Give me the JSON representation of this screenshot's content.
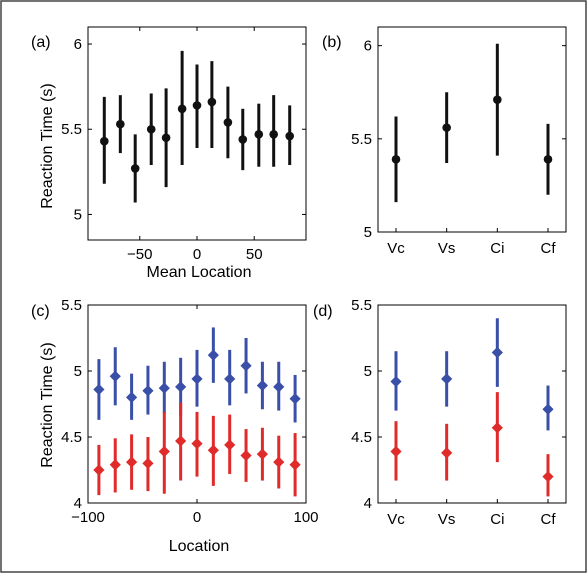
{
  "colors": {
    "black": "#111111",
    "blue": "#3a4fa8",
    "red": "#e02b2b",
    "frame": "#444444"
  },
  "chart_data": [
    {
      "panel": "(a)",
      "type": "scatter",
      "error_bars": true,
      "xlabel": "Mean Location",
      "ylabel": "Reaction Time (s)",
      "xlim": [
        -90,
        90
      ],
      "ylim": [
        4.85,
        6.1
      ],
      "xticks": [
        -50,
        0,
        50
      ],
      "yticks": [
        5,
        5.5,
        6
      ],
      "series": [
        {
          "color": "black",
          "x": [
            -81,
            -67,
            -54,
            -40,
            -27,
            -13,
            0,
            13,
            27,
            40,
            54,
            67,
            81
          ],
          "y": [
            5.43,
            5.53,
            5.27,
            5.5,
            5.45,
            5.62,
            5.64,
            5.66,
            5.54,
            5.44,
            5.47,
            5.47,
            5.46
          ],
          "err_low": [
            5.18,
            5.36,
            5.07,
            5.29,
            5.16,
            5.29,
            5.39,
            5.39,
            5.33,
            5.26,
            5.28,
            5.28,
            5.29
          ],
          "err_high": [
            5.69,
            5.7,
            5.47,
            5.71,
            5.74,
            5.96,
            5.88,
            5.9,
            5.75,
            5.62,
            5.65,
            5.7,
            5.64
          ]
        }
      ]
    },
    {
      "panel": "(b)",
      "type": "scatter",
      "error_bars": true,
      "categories": [
        "Vc",
        "Vs",
        "Ci",
        "Cf"
      ],
      "ylim": [
        5,
        6.1
      ],
      "yticks": [
        5,
        5.5,
        6
      ],
      "series": [
        {
          "color": "black",
          "y": [
            5.39,
            5.56,
            5.71,
            5.39
          ],
          "err_low": [
            5.16,
            5.37,
            5.41,
            5.2
          ],
          "err_high": [
            5.62,
            5.75,
            6.01,
            5.58
          ]
        }
      ]
    },
    {
      "panel": "(c)",
      "type": "scatter",
      "error_bars": true,
      "xlabel": "Location",
      "ylabel": "Reaction Time (s)",
      "xlim": [
        -100,
        100
      ],
      "ylim": [
        4,
        5.5
      ],
      "xticks": [
        -100,
        0,
        100
      ],
      "yticks": [
        4,
        4.5,
        5,
        5.5
      ],
      "series": [
        {
          "color": "blue",
          "x": [
            -90,
            -75,
            -60,
            -45,
            -30,
            -15,
            0,
            15,
            30,
            45,
            60,
            75,
            90
          ],
          "y": [
            4.86,
            4.96,
            4.8,
            4.85,
            4.87,
            4.88,
            4.94,
            5.12,
            4.94,
            5.04,
            4.89,
            4.88,
            4.79
          ],
          "err_low": [
            4.63,
            4.74,
            4.63,
            4.67,
            4.68,
            4.66,
            4.73,
            4.91,
            4.74,
            4.83,
            4.71,
            4.7,
            4.61
          ],
          "err_high": [
            5.09,
            5.18,
            4.98,
            5.04,
            5.07,
            5.1,
            5.16,
            5.33,
            5.16,
            5.25,
            5.07,
            5.07,
            4.97
          ]
        },
        {
          "color": "red",
          "x": [
            -90,
            -75,
            -60,
            -45,
            -30,
            -15,
            0,
            15,
            30,
            45,
            60,
            75,
            90
          ],
          "y": [
            4.25,
            4.29,
            4.31,
            4.3,
            4.39,
            4.47,
            4.45,
            4.4,
            4.44,
            4.36,
            4.37,
            4.31,
            4.29
          ],
          "err_low": [
            4.06,
            4.08,
            4.1,
            4.09,
            4.07,
            4.17,
            4.2,
            4.13,
            4.22,
            4.16,
            4.17,
            4.11,
            4.05
          ],
          "err_high": [
            4.44,
            4.49,
            4.52,
            4.5,
            4.69,
            4.76,
            4.69,
            4.66,
            4.67,
            4.56,
            4.57,
            4.51,
            4.53
          ]
        }
      ]
    },
    {
      "panel": "(d)",
      "type": "scatter",
      "error_bars": true,
      "categories": [
        "Vc",
        "Vs",
        "Ci",
        "Cf"
      ],
      "ylim": [
        4,
        5.5
      ],
      "yticks": [
        4,
        4.5,
        5,
        5.5
      ],
      "series": [
        {
          "color": "blue",
          "y": [
            4.92,
            4.94,
            5.14,
            4.71
          ],
          "err_low": [
            4.7,
            4.73,
            4.88,
            4.55
          ],
          "err_high": [
            5.15,
            5.15,
            5.4,
            4.89
          ]
        },
        {
          "color": "red",
          "y": [
            4.39,
            4.38,
            4.57,
            4.2
          ],
          "err_low": [
            4.17,
            4.17,
            4.31,
            4.05
          ],
          "err_high": [
            4.62,
            4.6,
            4.84,
            4.37
          ]
        }
      ]
    }
  ]
}
